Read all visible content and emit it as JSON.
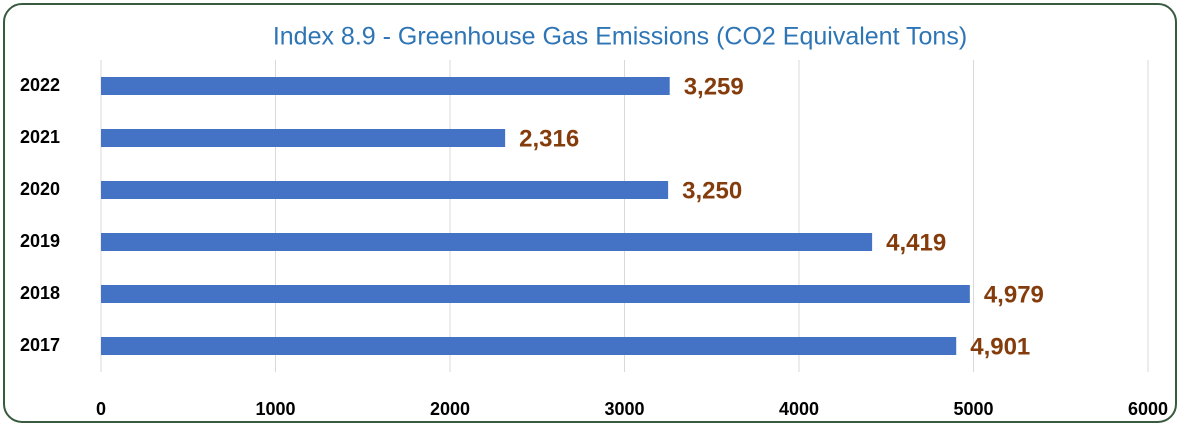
{
  "chart_data": {
    "type": "bar",
    "orientation": "horizontal",
    "title": "Index 8.9 - Greenhouse Gas Emissions (CO2 Equivalent Tons)",
    "categories": [
      "2022",
      "2021",
      "2020",
      "2019",
      "2018",
      "2017"
    ],
    "values": [
      3259,
      2316,
      3250,
      4419,
      4979,
      4901
    ],
    "value_labels": [
      "3,259",
      "2,316",
      "3,250",
      "4,419",
      "4,979",
      "4,901"
    ],
    "color": "#4472c4",
    "xlim": [
      0,
      6000
    ],
    "xticks": [
      0,
      1000,
      2000,
      3000,
      4000,
      5000,
      6000
    ],
    "grid": true
  }
}
